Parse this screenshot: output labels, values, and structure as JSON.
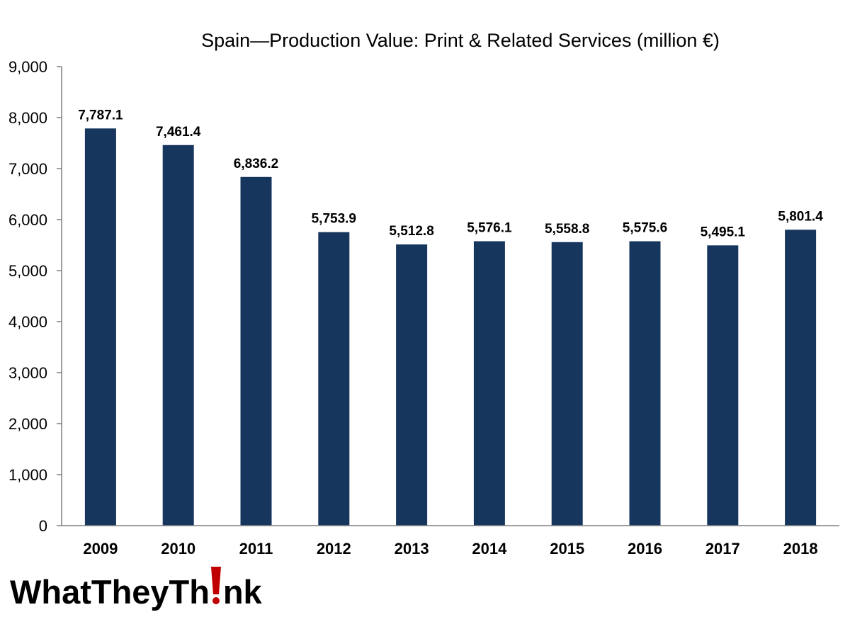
{
  "chart_data": {
    "type": "bar",
    "title": "Spain—Production Value: Print & Related Services (million €)",
    "categories": [
      "2009",
      "2010",
      "2011",
      "2012",
      "2013",
      "2014",
      "2015",
      "2016",
      "2017",
      "2018"
    ],
    "values": [
      7787.1,
      7461.4,
      6836.2,
      5753.9,
      5512.8,
      5576.1,
      5558.8,
      5575.6,
      5495.1,
      5801.4
    ],
    "data_labels": [
      "7,787.1",
      "7,461.4",
      "6,836.2",
      "5,753.9",
      "5,512.8",
      "5,576.1",
      "5,558.8",
      "5,575.6",
      "5,495.1",
      "5,801.4"
    ],
    "y_ticks": [
      0,
      1000,
      2000,
      3000,
      4000,
      5000,
      6000,
      7000,
      8000,
      9000
    ],
    "y_tick_labels": [
      "0",
      "1,000",
      "2,000",
      "3,000",
      "4,000",
      "5,000",
      "6,000",
      "7,000",
      "8,000",
      "9,000"
    ],
    "xlabel": "",
    "ylabel": "",
    "ylim": [
      0,
      9000
    ],
    "grid": false,
    "legend": "none",
    "bar_color": "#17365d"
  },
  "logo": {
    "text_before": "WhatTheyTh",
    "text_after": "nk",
    "accent_color": "#c00000",
    "icon": "exclamation-mark-icon"
  }
}
